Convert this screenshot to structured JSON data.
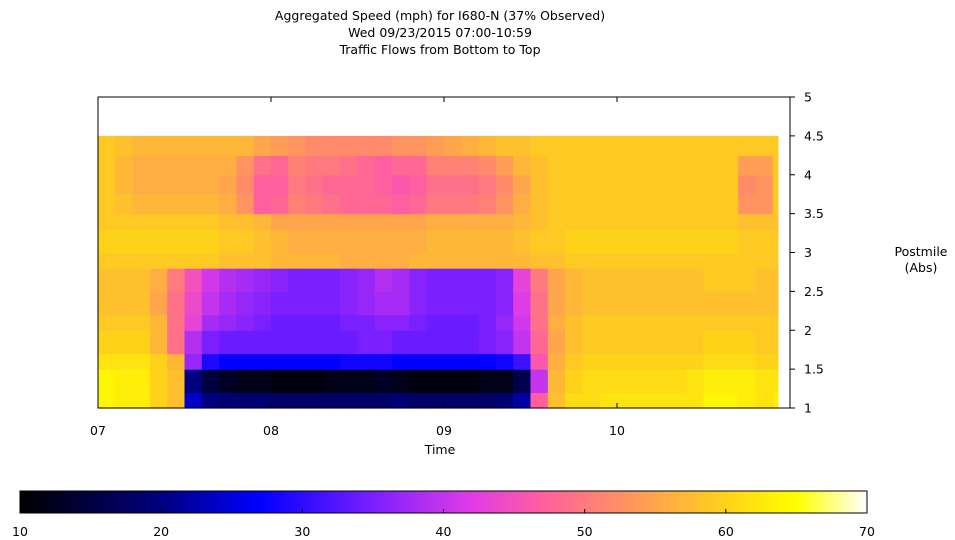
{
  "chart_data": {
    "type": "heatmap",
    "title": [
      "Aggregated Speed (mph) for I680-N (37% Observed)",
      "Wed 09/23/2015 07:00-10:59",
      "Traffic Flows from Bottom to Top"
    ],
    "xlabel": "Time",
    "ylabel": "Postmile\n(Abs)",
    "x_ticks": [
      "07",
      "08",
      "09",
      "10"
    ],
    "y_ticks": [
      "1",
      "1.5",
      "2",
      "2.5",
      "3",
      "3.5",
      "4",
      "4.5",
      "5"
    ],
    "xlim_hours": [
      7.0,
      11.0
    ],
    "ylim_postmile": [
      1,
      5
    ],
    "colorbar": {
      "ticks": [
        "10",
        "20",
        "30",
        "40",
        "50",
        "60",
        "70"
      ],
      "range": [
        10,
        70
      ],
      "stops": [
        {
          "v": 10,
          "color": "#000000"
        },
        {
          "v": 20,
          "color": "#00007f"
        },
        {
          "v": 27,
          "color": "#0000ff"
        },
        {
          "v": 35,
          "color": "#7a1fff"
        },
        {
          "v": 42,
          "color": "#e03ce6"
        },
        {
          "v": 47,
          "color": "#ff5f9e"
        },
        {
          "v": 53,
          "color": "#ff9460"
        },
        {
          "v": 60,
          "color": "#ffd21a"
        },
        {
          "v": 65,
          "color": "#ffff00"
        },
        {
          "v": 70,
          "color": "#ffffff"
        }
      ]
    },
    "row_bands_postmile": [
      [
        1.0,
        1.2
      ],
      [
        1.2,
        1.5
      ],
      [
        1.5,
        1.7
      ],
      [
        1.7,
        2.0
      ],
      [
        2.0,
        2.2
      ],
      [
        2.2,
        2.5
      ],
      [
        2.5,
        2.8
      ],
      [
        2.8,
        3.0
      ],
      [
        3.0,
        3.3
      ],
      [
        3.3,
        3.5
      ],
      [
        3.5,
        3.75
      ],
      [
        3.75,
        4.0
      ],
      [
        4.0,
        4.25
      ],
      [
        4.25,
        4.5
      ]
    ],
    "col_start_hours": [
      7.0,
      7.1,
      7.2,
      7.3,
      7.4,
      7.5,
      7.6,
      7.7,
      7.8,
      7.9,
      8.0,
      8.1,
      8.2,
      8.3,
      8.4,
      8.5,
      8.6,
      8.7,
      8.8,
      8.9,
      9.0,
      9.1,
      9.2,
      9.3,
      9.4,
      9.5,
      9.6,
      9.7,
      9.8,
      9.9,
      10.0,
      10.1,
      10.2,
      10.3,
      10.4,
      10.5,
      10.6,
      10.7,
      10.8,
      10.9
    ],
    "col_end_hour": 10.93,
    "speed_mph": [
      [
        64,
        63,
        63,
        60,
        58,
        24,
        20,
        19,
        19,
        19,
        18,
        18,
        18,
        18,
        18,
        18,
        18,
        19,
        18,
        18,
        18,
        18,
        18,
        19,
        22,
        47,
        58,
        61,
        61,
        62,
        62,
        62,
        62,
        62,
        62,
        64,
        64,
        63,
        62,
        63
      ],
      [
        64,
        63,
        63,
        60,
        58,
        20,
        15,
        13,
        12,
        12,
        11,
        11,
        11,
        12,
        12,
        12,
        13,
        12,
        11,
        11,
        11,
        11,
        12,
        12,
        16,
        40,
        57,
        60,
        61,
        61,
        61,
        61,
        61,
        61,
        62,
        63,
        63,
        63,
        62,
        62
      ],
      [
        62,
        62,
        62,
        60,
        57,
        37,
        29,
        27,
        27,
        27,
        27,
        27,
        27,
        27,
        28,
        28,
        28,
        27,
        27,
        27,
        27,
        27,
        27,
        28,
        31,
        46,
        56,
        59,
        60,
        60,
        60,
        60,
        60,
        60,
        60,
        61,
        61,
        61,
        60,
        60
      ],
      [
        60,
        60,
        60,
        57,
        49,
        39,
        35,
        34,
        34,
        34,
        34,
        34,
        34,
        34,
        34,
        35,
        35,
        34,
        34,
        34,
        34,
        34,
        35,
        36,
        40,
        48,
        55,
        58,
        59,
        59,
        59,
        59,
        59,
        59,
        59,
        60,
        60,
        60,
        59,
        59
      ],
      [
        59,
        59,
        59,
        57,
        49,
        43,
        38,
        37,
        36,
        35,
        34,
        34,
        34,
        34,
        35,
        35,
        36,
        36,
        35,
        34,
        34,
        34,
        35,
        37,
        41,
        49,
        56,
        58,
        59,
        59,
        59,
        59,
        59,
        59,
        59,
        59,
        59,
        59,
        59,
        59
      ],
      [
        58,
        58,
        58,
        55,
        49,
        44,
        40,
        38,
        37,
        36,
        35,
        35,
        35,
        35,
        36,
        37,
        38,
        38,
        36,
        35,
        35,
        35,
        35,
        36,
        42,
        49,
        55,
        57,
        58,
        58,
        58,
        58,
        58,
        58,
        58,
        58,
        58,
        58,
        58,
        58
      ],
      [
        58,
        58,
        58,
        56,
        50,
        45,
        41,
        39,
        38,
        37,
        36,
        35,
        35,
        35,
        36,
        37,
        39,
        38,
        36,
        35,
        35,
        35,
        35,
        36,
        43,
        50,
        55,
        57,
        58,
        58,
        58,
        58,
        58,
        58,
        58,
        59,
        59,
        59,
        58,
        58
      ],
      [
        59,
        59,
        59,
        59,
        59,
        59,
        59,
        58,
        58,
        58,
        57,
        57,
        57,
        57,
        56,
        56,
        56,
        56,
        57,
        57,
        57,
        57,
        57,
        57,
        57,
        58,
        58,
        59,
        59,
        59,
        59,
        59,
        59,
        59,
        59,
        59,
        59,
        59,
        59,
        59
      ],
      [
        60,
        60,
        60,
        60,
        60,
        60,
        60,
        59,
        59,
        58,
        57,
        56,
        56,
        56,
        56,
        56,
        56,
        56,
        56,
        57,
        57,
        57,
        57,
        57,
        58,
        59,
        59,
        60,
        60,
        60,
        60,
        60,
        60,
        60,
        60,
        60,
        60,
        59,
        59,
        59
      ],
      [
        59,
        59,
        59,
        59,
        59,
        59,
        59,
        58,
        58,
        57,
        55,
        55,
        55,
        55,
        55,
        55,
        55,
        55,
        55,
        56,
        56,
        56,
        56,
        56,
        57,
        58,
        59,
        59,
        59,
        59,
        59,
        59,
        59,
        59,
        59,
        59,
        59,
        58,
        58,
        58
      ],
      [
        59,
        58,
        57,
        57,
        57,
        57,
        57,
        56,
        53,
        47,
        48,
        51,
        50,
        49,
        48,
        48,
        48,
        47,
        48,
        50,
        50,
        50,
        51,
        53,
        56,
        58,
        59,
        59,
        59,
        59,
        59,
        59,
        59,
        59,
        59,
        59,
        59,
        53,
        53,
        59
      ],
      [
        59,
        57,
        56,
        56,
        56,
        56,
        56,
        55,
        52,
        47,
        47,
        50,
        49,
        48,
        48,
        48,
        47,
        46,
        47,
        49,
        49,
        49,
        50,
        52,
        55,
        58,
        59,
        59,
        59,
        59,
        59,
        59,
        59,
        59,
        59,
        59,
        59,
        52,
        53,
        59
      ],
      [
        59,
        57,
        56,
        56,
        56,
        56,
        56,
        56,
        53,
        49,
        48,
        51,
        50,
        50,
        49,
        48,
        47,
        48,
        48,
        51,
        51,
        51,
        52,
        54,
        57,
        58,
        59,
        59,
        59,
        59,
        59,
        59,
        59,
        59,
        59,
        59,
        59,
        54,
        54,
        59
      ],
      [
        59,
        58,
        57,
        57,
        57,
        57,
        57,
        57,
        57,
        55,
        54,
        53,
        52,
        52,
        52,
        52,
        52,
        53,
        53,
        54,
        55,
        56,
        57,
        58,
        58,
        59,
        59,
        59,
        59,
        59,
        59,
        59,
        59,
        59,
        59,
        59,
        59,
        59,
        59,
        59
      ]
    ]
  }
}
